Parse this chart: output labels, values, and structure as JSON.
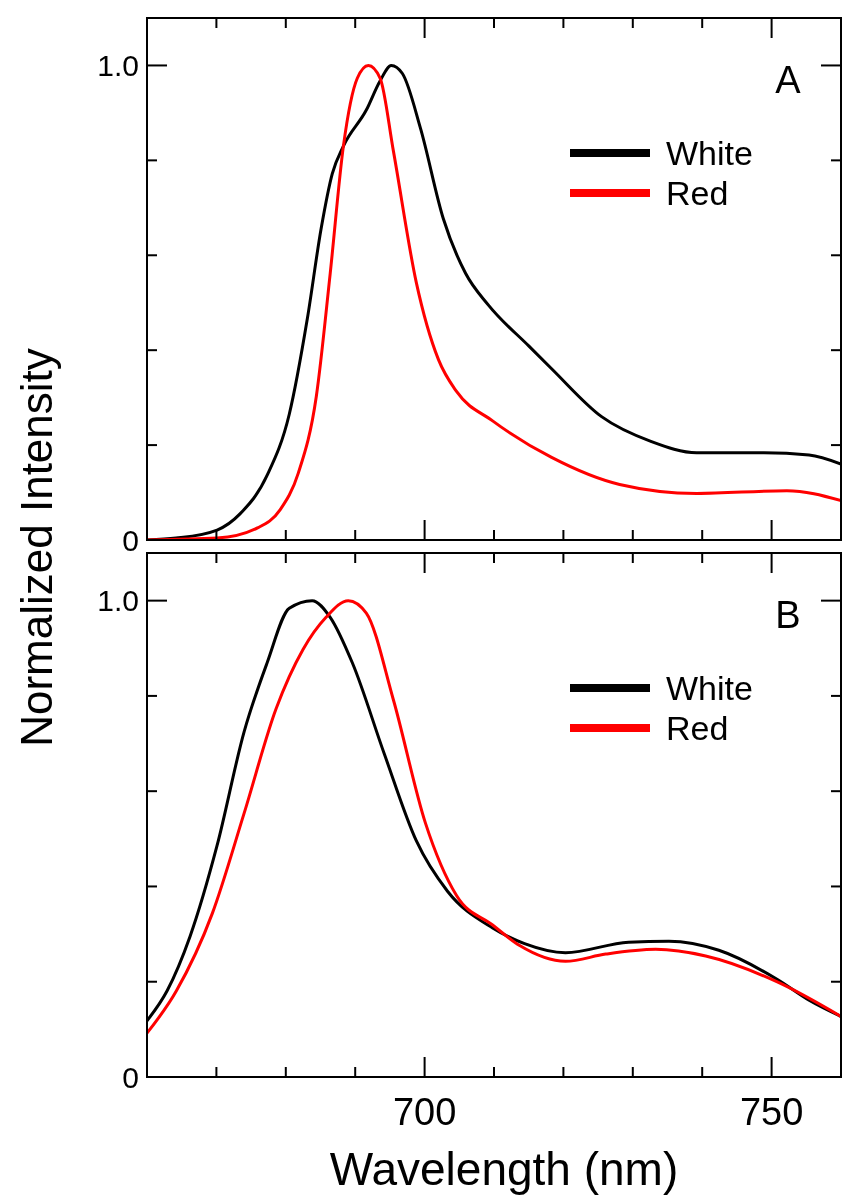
{
  "chart_data": [
    {
      "type": "line",
      "ylabel": "Normalized Intensity",
      "annotations": [
        "A"
      ],
      "legend": "top right",
      "tick_labels": "y",
      "xlim": [
        660,
        760
      ],
      "xticks": [
        {
          "value": 670,
          "label": null
        },
        {
          "value": 680,
          "label": null
        },
        {
          "value": 690,
          "label": null
        },
        {
          "value": 700,
          "label": null
        },
        {
          "value": 710,
          "label": null
        },
        {
          "value": 720,
          "label": null
        },
        {
          "value": 730,
          "label": null
        },
        {
          "value": 740,
          "label": null
        },
        {
          "value": 750,
          "label": null
        }
      ],
      "ylim": [
        0,
        1.1
      ],
      "yticks": [
        {
          "value": 0,
          "label": "0"
        },
        {
          "value": 0.2,
          "label": null
        },
        {
          "value": 0.4,
          "label": null
        },
        {
          "value": 0.6,
          "label": null
        },
        {
          "value": 0.8,
          "label": null
        },
        {
          "value": 1,
          "label": "1.0"
        }
      ],
      "series": [
        {
          "name": "White",
          "color": "#000000",
          "x": [
            660,
            664.2,
            670.1,
            673.4,
            677.3,
            680.5,
            683.1,
            685.1,
            686.7,
            688.3,
            691.6,
            693.6,
            695.2,
            696.8,
            699.4,
            702.7,
            705.9,
            709.2,
            715.0,
            718.3,
            725.5,
            732.6,
            739.2,
            748.9,
            755.4,
            760
          ],
          "values": [
            0,
            0.004,
            0.021,
            0.055,
            0.136,
            0.265,
            0.466,
            0.657,
            0.772,
            0.83,
            0.906,
            0.968,
            1.0,
            0.983,
            0.868,
            0.677,
            0.562,
            0.495,
            0.409,
            0.361,
            0.26,
            0.208,
            0.184,
            0.184,
            0.179,
            0.16
          ]
        },
        {
          "name": "Red",
          "color": "#ff0000",
          "x": [
            660,
            670.1,
            676,
            679.2,
            681.8,
            684.4,
            686.4,
            688.3,
            690.3,
            691.9,
            693.6,
            695.5,
            698.8,
            702,
            704.6,
            709.8,
            718.3,
            728.1,
            739.2,
            752.2,
            760
          ],
          "values": [
            0,
            0.004,
            0.026,
            0.064,
            0.141,
            0.303,
            0.562,
            0.83,
            0.973,
            1.0,
            0.973,
            0.82,
            0.543,
            0.38,
            0.313,
            0.251,
            0.174,
            0.117,
            0.098,
            0.104,
            0.083
          ]
        }
      ]
    },
    {
      "type": "line",
      "xlabel": "Wavelength (nm)",
      "annotations": [
        "B"
      ],
      "legend": "top right",
      "xlim": [
        660,
        760
      ],
      "xticks": [
        {
          "value": 670,
          "label": null
        },
        {
          "value": 680,
          "label": null
        },
        {
          "value": 690,
          "label": null
        },
        700,
        {
          "value": 710,
          "label": null
        },
        {
          "value": 720,
          "label": null
        },
        {
          "value": 730,
          "label": null
        },
        {
          "value": 740,
          "label": null
        },
        750
      ],
      "ylim": [
        0,
        1.1
      ],
      "yticks": [
        {
          "value": 0,
          "label": "0"
        },
        {
          "value": 0.2,
          "label": null
        },
        {
          "value": 0.4,
          "label": null
        },
        {
          "value": 0.6,
          "label": null
        },
        {
          "value": 0.8,
          "label": null
        },
        {
          "value": 1,
          "label": "1.0"
        }
      ],
      "series": [
        {
          "name": "White",
          "color": "#000000",
          "x": [
            660,
            662.9,
            666.2,
            670.1,
            674,
            677.3,
            680.5,
            683.8,
            686.4,
            689.6,
            694.2,
            698.8,
            703.3,
            709.8,
            714.4,
            720.3,
            729.4,
            735.2,
            742.4,
            750.9,
            755.4,
            760
          ],
          "values": [
            0.118,
            0.181,
            0.295,
            0.486,
            0.725,
            0.869,
            0.984,
            1.0,
            0.965,
            0.869,
            0.678,
            0.496,
            0.39,
            0.313,
            0.28,
            0.261,
            0.283,
            0.285,
            0.266,
            0.204,
            0.161,
            0.127
          ]
        },
        {
          "name": "Red",
          "color": "#ff0000",
          "x": [
            660,
            664.2,
            669.4,
            674,
            678.6,
            682.5,
            685.8,
            689,
            691.6,
            695.5,
            700.1,
            704.6,
            709.8,
            713.7,
            720.3,
            726.1,
            733.3,
            740.5,
            750.9,
            760
          ],
          "values": [
            0.092,
            0.18,
            0.343,
            0.554,
            0.773,
            0.898,
            0.965,
            1.0,
            0.974,
            0.792,
            0.534,
            0.381,
            0.319,
            0.276,
            0.243,
            0.258,
            0.268,
            0.254,
            0.199,
            0.127
          ]
        }
      ]
    }
  ]
}
